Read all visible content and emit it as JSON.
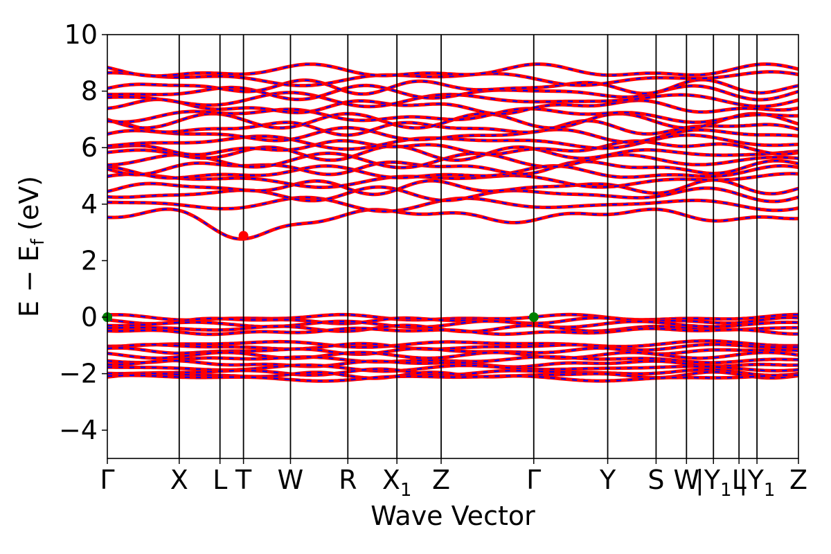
{
  "chart_data": {
    "type": "line",
    "title": "",
    "xlabel": "Wave Vector",
    "ylabel": "E − E_f (eV)",
    "ylabel_parts": {
      "lead": "E − E",
      "sub": "f",
      "unit": " (eV)"
    },
    "ylim": [
      -5,
      10
    ],
    "yticks": [
      -4,
      -2,
      0,
      2,
      4,
      6,
      8,
      10
    ],
    "ytick_labels": [
      "−4",
      "−2",
      "0",
      "2",
      "4",
      "6",
      "8",
      "10"
    ],
    "grid": false,
    "legend": "none",
    "kpath_labels": [
      {
        "x": 0.0,
        "label": "Γ",
        "sub": ""
      },
      {
        "x": 0.104,
        "label": "X",
        "sub": ""
      },
      {
        "x": 0.163,
        "label": "L",
        "sub": ""
      },
      {
        "x": 0.197,
        "label": "T",
        "sub": ""
      },
      {
        "x": 0.265,
        "label": "W",
        "sub": ""
      },
      {
        "x": 0.348,
        "label": "R",
        "sub": ""
      },
      {
        "x": 0.419,
        "label": "X",
        "sub": "1"
      },
      {
        "x": 0.483,
        "label": "Z",
        "sub": ""
      },
      {
        "x": 0.617,
        "label": "Γ",
        "sub": ""
      },
      {
        "x": 0.724,
        "label": "Y",
        "sub": ""
      },
      {
        "x": 0.794,
        "label": "S",
        "sub": ""
      },
      {
        "x": 0.838,
        "label": "W",
        "sub": ""
      },
      {
        "x": 0.877,
        "label": "|Y",
        "sub": "1"
      },
      {
        "x": 0.914,
        "label": "L",
        "sub": ""
      },
      {
        "x": 0.94,
        "label": "|Y",
        "sub": "1"
      },
      {
        "x": 1.0,
        "label": "Z",
        "sub": ""
      }
    ],
    "band_colors": {
      "spin_up": "#ff0000",
      "spin_down": "#0000ff"
    },
    "valence_bands": [
      -0.02,
      -0.12,
      -0.25,
      -0.4,
      -0.5,
      -0.95,
      -1.05,
      -1.2,
      -1.35,
      -1.5,
      -1.65,
      -1.8,
      -1.95,
      -2.05,
      -2.15
    ],
    "conduction_bands": [
      3.6,
      4.0,
      4.35,
      4.6,
      4.85,
      5.1,
      5.3,
      5.55,
      5.8,
      6.0,
      6.2,
      6.45,
      6.7,
      6.95,
      7.15,
      7.45,
      7.7,
      7.95,
      8.15,
      8.45,
      8.7
    ],
    "cbm": {
      "label": "T",
      "x": 0.197,
      "y": 2.88,
      "color": "#ff0000"
    },
    "vbm": [
      {
        "label": "Γ",
        "x": 0.0,
        "y": 0.0,
        "color": "#008000"
      },
      {
        "label": "Γ",
        "x": 0.617,
        "y": 0.0,
        "color": "#008000"
      }
    ]
  }
}
